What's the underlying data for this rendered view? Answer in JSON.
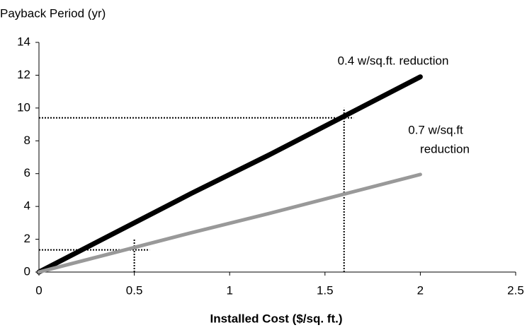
{
  "chart_data": {
    "type": "line",
    "y_axis_label": "Payback Period (yr)",
    "x_axis_label": "Installed Cost ($/sq. ft.)",
    "x": [
      0,
      0.4,
      0.8,
      1.2,
      1.6,
      2
    ],
    "series": [
      {
        "name": "0.4 w/sq.ft. reduction",
        "color": "#000000",
        "values": [
          0,
          2.4,
          4.8,
          7.1,
          9.5,
          11.9
        ]
      },
      {
        "name": "0.7 w/sq.ft reduction",
        "color": "#999999",
        "values": [
          0,
          1.2,
          2.4,
          3.55,
          4.75,
          5.95
        ]
      }
    ],
    "series_label_lines": [
      [
        "0.4 w/sq.ft. reduction"
      ],
      [
        "0.7 w/sq.ft",
        "reduction"
      ]
    ],
    "reference_lines": [
      {
        "x": [
          0,
          1.65
        ],
        "y": [
          9.4,
          9.4
        ]
      },
      {
        "x": [
          1.6,
          1.6
        ],
        "y": [
          0,
          10
        ]
      },
      {
        "x": [
          0,
          0.58
        ],
        "y": [
          1.35,
          1.35
        ]
      },
      {
        "x": [
          0.5,
          0.5
        ],
        "y": [
          0,
          2
        ]
      }
    ],
    "xlim": [
      0,
      2.5
    ],
    "xticks": [
      0,
      0.5,
      1,
      1.5,
      2,
      2.5
    ],
    "ylim": [
      0,
      14
    ],
    "yticks": [
      0,
      2,
      4,
      6,
      8,
      10,
      12,
      14
    ]
  }
}
